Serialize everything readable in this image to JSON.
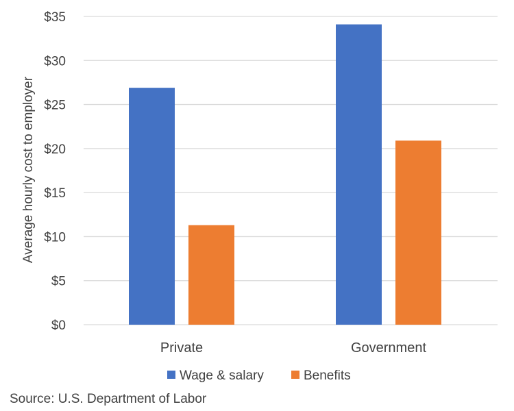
{
  "chart_data": {
    "type": "bar",
    "categories": [
      "Private",
      "Government"
    ],
    "series": [
      {
        "name": "Wage & salary",
        "values": [
          26.9,
          34.1
        ],
        "color": "#4472C4"
      },
      {
        "name": "Benefits",
        "values": [
          11.3,
          20.9
        ],
        "color": "#ED7D31"
      }
    ],
    "ylabel": "Average hourly cost to employer",
    "xlabel": "",
    "ylim": [
      0,
      35
    ],
    "yticks": [
      "$0",
      "$5",
      "$10",
      "$15",
      "$20",
      "$25",
      "$30",
      "$35"
    ],
    "ytick_values": [
      0,
      5,
      10,
      15,
      20,
      25,
      30,
      35
    ],
    "grid": true,
    "legend_position": "bottom",
    "gridline_color": "#D9D9D9"
  },
  "source": "Source: U.S. Department of Labor"
}
